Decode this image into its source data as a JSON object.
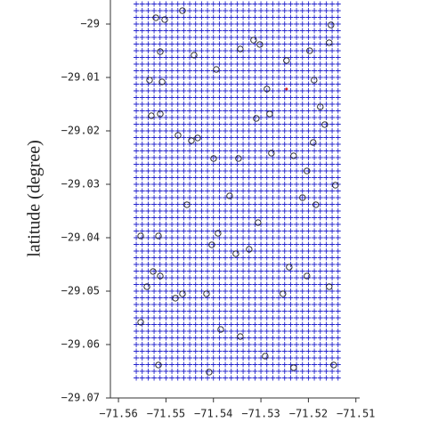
{
  "chart_data": {
    "type": "scatter",
    "y_label": "latitude (degree)",
    "xlim": [
      -71.5617,
      -71.5092
    ],
    "ylim": [
      -29.07,
      -28.9955
    ],
    "xticks": [
      {
        "value": -71.56,
        "label": "−71.56"
      },
      {
        "value": -71.55,
        "label": "−71.55"
      },
      {
        "value": -71.54,
        "label": "−71.54"
      },
      {
        "value": -71.53,
        "label": "−71.53"
      },
      {
        "value": -71.52,
        "label": "−71.52"
      },
      {
        "value": -71.51,
        "label": "−71.51"
      }
    ],
    "yticks": [
      {
        "value": -29,
        "label": "−29"
      },
      {
        "value": -29.01,
        "label": "−29.01"
      },
      {
        "value": -29.02,
        "label": "−29.02"
      },
      {
        "value": -29.03,
        "label": "−29.03"
      },
      {
        "value": -29.04,
        "label": "−29.04"
      },
      {
        "value": -29.05,
        "label": "−29.05"
      },
      {
        "value": -29.06,
        "label": "−29.06"
      },
      {
        "value": -29.07,
        "label": "−29.07"
      }
    ],
    "series": [
      {
        "color": "#2222cc",
        "marker": "+",
        "x_grid": [
          -71.55625,
          -71.555,
          -71.55375,
          -71.5525,
          -71.55125,
          -71.55,
          -71.54875,
          -71.5475,
          -71.54625,
          -71.545,
          -71.54375,
          -71.5425,
          -71.54125,
          -71.54,
          -71.53875,
          -71.5375,
          -71.53625,
          -71.535,
          -71.53375,
          -71.5325,
          -71.53125,
          -71.53,
          -71.52875,
          -71.5275,
          -71.52625,
          -71.525,
          -71.52375,
          -71.5225,
          -71.52125,
          -71.52,
          -71.51875,
          -71.5175,
          -71.51625,
          -71.515,
          -71.51375
        ],
        "y_grid": [
          -28.995,
          -28.99625,
          -28.9975,
          -28.99875,
          -29,
          -29.00125,
          -29.0025,
          -29.00375,
          -29.005,
          -29.00625,
          -29.0075,
          -29.00875,
          -29.01,
          -29.01125,
          -29.0125,
          -29.01375,
          -29.015,
          -29.01625,
          -29.0175,
          -29.01875,
          -29.02,
          -29.02125,
          -29.0225,
          -29.02375,
          -29.025,
          -29.02625,
          -29.0275,
          -29.02875,
          -29.03,
          -29.03125,
          -29.0325,
          -29.03375,
          -29.035,
          -29.03625,
          -29.0375,
          -29.03875,
          -29.04,
          -29.04125,
          -29.0425,
          -29.04375,
          -29.045,
          -29.04625,
          -29.0475,
          -29.04875,
          -29.05,
          -29.05125,
          -29.0525,
          -29.05375,
          -29.055,
          -29.05625,
          -29.0575,
          -29.05875,
          -29.06,
          -29.06125,
          -29.0625,
          -29.06375,
          -29.065,
          -29.06625
        ]
      },
      {
        "color": "#222222",
        "marker": "o",
        "x": [
          -71.55213,
          -71.55026,
          -71.54652,
          -71.5512,
          -71.54408,
          -71.5394,
          -71.53434,
          -71.53154,
          -71.53022,
          -71.52873,
          -71.52461,
          -71.51974,
          -71.51524,
          -71.51562,
          -71.5188,
          -71.55345,
          -71.55082,
          -71.55307,
          -71.5512,
          -71.54745,
          -71.54464,
          -71.54333,
          -71.53996,
          -71.53472,
          -71.53097,
          -71.52816,
          -71.52779,
          -71.52311,
          -71.51749,
          -71.51655,
          -71.51899,
          -71.5203,
          -71.51431,
          -71.52124,
          -71.51843,
          -71.55157,
          -71.55532,
          -71.5527,
          -71.5512,
          -71.55401,
          -71.54801,
          -71.54652,
          -71.54146,
          -71.53903,
          -71.54034,
          -71.53528,
          -71.53247,
          -71.53846,
          -71.53434,
          -71.52536,
          -71.5203,
          -71.51562,
          -71.55532,
          -71.55157,
          -71.5409,
          -71.5291,
          -71.52311,
          -71.51468,
          -71.54558,
          -71.53659,
          -71.5306,
          -71.52404
        ],
        "y": [
          -28.99883,
          -28.99917,
          -28.9975,
          -29.00517,
          -29.00583,
          -29.0085,
          -29.00467,
          -29.003,
          -29.00383,
          -29.01217,
          -29.00683,
          -29.005,
          -29.00017,
          -29.0035,
          -29.0105,
          -29.0105,
          -29.01083,
          -29.01717,
          -29.01683,
          -29.02083,
          -29.02183,
          -29.02133,
          -29.02517,
          -29.02517,
          -29.01767,
          -29.01683,
          -29.02417,
          -29.02467,
          -29.0155,
          -29.01883,
          -29.02217,
          -29.0275,
          -29.03017,
          -29.0325,
          -29.03383,
          -29.03967,
          -29.03967,
          -29.04633,
          -29.04717,
          -29.04917,
          -29.05133,
          -29.0505,
          -29.0505,
          -29.03917,
          -29.04133,
          -29.043,
          -29.04217,
          -29.05717,
          -29.0585,
          -29.0505,
          -29.04717,
          -29.04917,
          -29.05583,
          -29.06383,
          -29.06517,
          -29.06217,
          -29.06433,
          -29.06383,
          -29.03383,
          -29.03217,
          -29.03717,
          -29.0455
        ]
      },
      {
        "color": "#dd2222",
        "marker": "dot",
        "x": [
          -71.52461
        ],
        "y": [
          -29.01217
        ]
      }
    ]
  }
}
